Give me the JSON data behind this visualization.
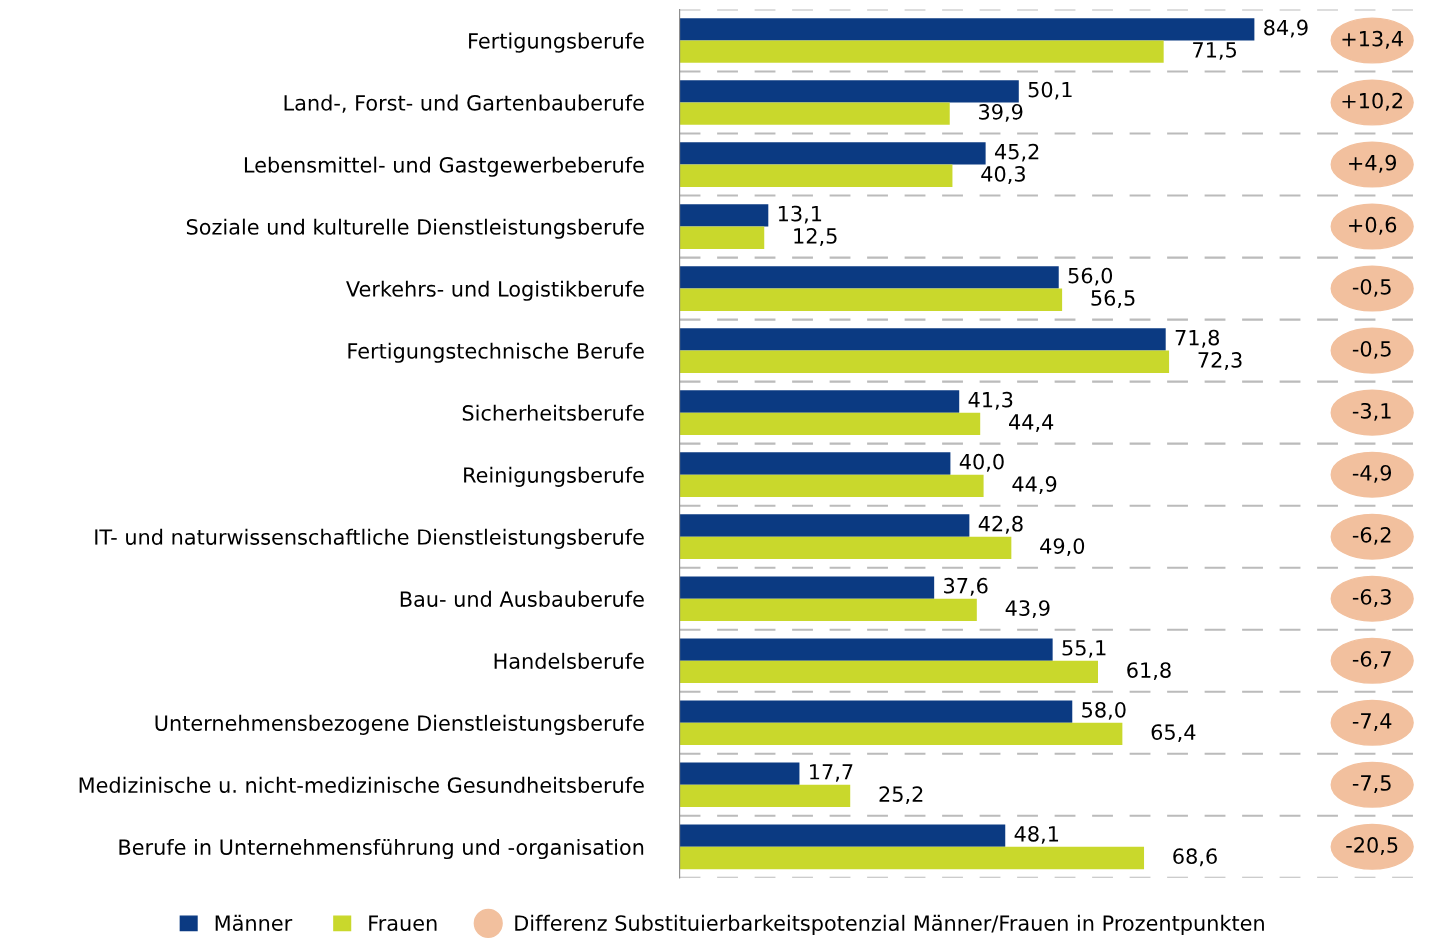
{
  "chart_data": {
    "type": "bar",
    "orientation": "horizontal",
    "data_labels": true,
    "legend": "bottom",
    "xlim": [
      0,
      110
    ],
    "tick_labels": "y",
    "categories": [
      "Fertigungsberufe",
      "Land-, Forst- und Gartenbauberufe",
      "Lebensmittel- und Gastgewerbeberufe",
      "Soziale und kulturelle Dienstleistungsberufe",
      "Verkehrs- und Logistikberufe",
      "Fertigungstechnische Berufe",
      "Sicherheitsberufe",
      "Reinigungsberufe",
      "IT- und naturwissenschaftliche Dienstleistungsberufe",
      "Bau- und Ausbauberufe",
      "Handelsberufe",
      "Unternehmensbezogene Dienstleistungsberufe",
      "Medizinische u. nicht-medizinische Gesundheitsberufe",
      "Berufe in Unternehmensführung und -organisation"
    ],
    "series": [
      {
        "name": "Männer",
        "color": "#0b3a82",
        "values": [
          84.9,
          50.1,
          45.2,
          13.1,
          56.0,
          71.8,
          41.3,
          40.0,
          42.8,
          37.6,
          55.1,
          58.0,
          17.7,
          48.1
        ],
        "value_labels": [
          "84,9",
          "50,1",
          "45,2",
          "13,1",
          "56,0",
          "71,8",
          "41,3",
          "40,0",
          "42,8",
          "37,6",
          "55,1",
          "58,0",
          "17,7",
          "48,1"
        ]
      },
      {
        "name": "Frauen",
        "color": "#c9d82c",
        "values": [
          71.5,
          39.9,
          40.3,
          12.5,
          56.5,
          72.3,
          44.4,
          44.9,
          49.0,
          43.9,
          61.8,
          65.4,
          25.2,
          68.6
        ],
        "value_labels": [
          "71,5",
          "39,9",
          "40,3",
          "12,5",
          "56,5",
          "72,3",
          "44,4",
          "44,9",
          "49,0",
          "43,9",
          "61,8",
          "65,4",
          "25,2",
          "68,6"
        ]
      }
    ],
    "annotations": [
      "Differenz Substituierbarkeitspotenzial Männer/Frauen in Prozentpunkten",
      "+13,4",
      "+10,2",
      "+4,9",
      "+0,6",
      "-0,5",
      "-0,5",
      "-3,1",
      "-4,9",
      "-6,2",
      "-6,3",
      "-6,7",
      "-7,4",
      "-7,5",
      "-20,5"
    ]
  }
}
